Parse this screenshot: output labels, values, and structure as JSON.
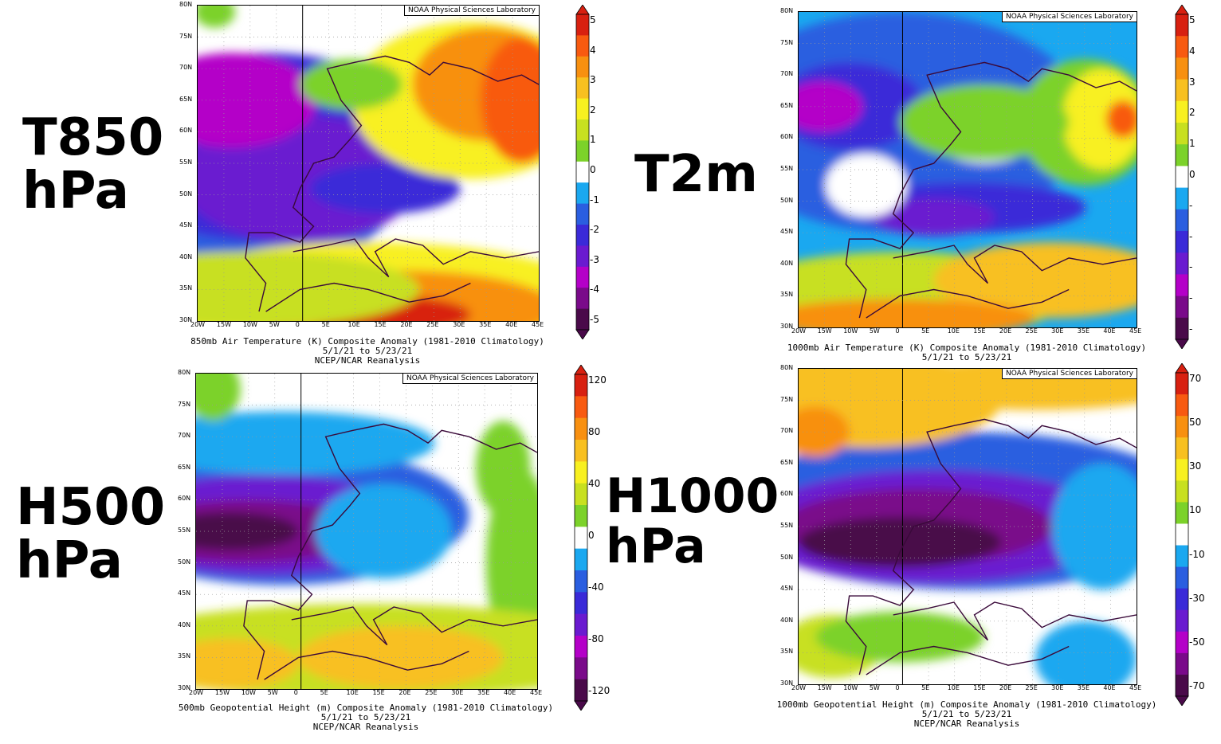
{
  "panels": [
    {
      "id": "t850",
      "big_label_lines": [
        "T850",
        "hPa"
      ],
      "caption_lines": [
        "850mb Air Temperature (K) Composite Anomaly (1981-2010 Climatology)",
        "5/1/21   to 5/23/21",
        "NCEP/NCAR Reanalysis"
      ],
      "noaa": "NOAA Physical Sciences Laboratory",
      "lat_ticks": [
        "80N",
        "75N",
        "70N",
        "65N",
        "60N",
        "55N",
        "50N",
        "45N",
        "40N",
        "35N",
        "30N"
      ],
      "lon_ticks": [
        "20W",
        "15W",
        "10W",
        "5W",
        "0",
        "5E",
        "10E",
        "15E",
        "20E",
        "25E",
        "30E",
        "35E",
        "40E",
        "45E"
      ],
      "colorbar_labels": [
        "5",
        "4",
        "3",
        "2",
        "1",
        "0",
        "-1",
        "-2",
        "-3",
        "-4",
        "-5"
      ]
    },
    {
      "id": "t2m",
      "big_label_lines": [
        "T2m"
      ],
      "caption_lines": [
        "1000mb Air Temperature (K) Composite Anomaly (1981-2010 Climatology)",
        "5/1/21   to 5/23/21"
      ],
      "noaa": "NOAA Physical Sciences Laboratory",
      "lat_ticks": [
        "80N",
        "75N",
        "70N",
        "65N",
        "60N",
        "55N",
        "50N",
        "45N",
        "40N",
        "35N",
        "30N"
      ],
      "lon_ticks": [
        "20W",
        "15W",
        "10W",
        "5W",
        "0",
        "5E",
        "10E",
        "15E",
        "20E",
        "25E",
        "30E",
        "35E",
        "40E",
        "45E"
      ],
      "colorbar_labels": [
        "5",
        "4",
        "3",
        "2",
        "1",
        "0",
        "-",
        "-",
        "-",
        "-",
        "-"
      ]
    },
    {
      "id": "h500",
      "big_label_lines": [
        "H500",
        "hPa"
      ],
      "caption_lines": [
        "500mb Geopotential Height (m) Composite Anomaly (1981-2010 Climatology)",
        "5/1/21   to 5/23/21",
        "NCEP/NCAR Reanalysis"
      ],
      "noaa": "NOAA Physical Sciences Laboratory",
      "lat_ticks": [
        "80N",
        "75N",
        "70N",
        "65N",
        "60N",
        "55N",
        "50N",
        "45N",
        "40N",
        "35N",
        "30N"
      ],
      "lon_ticks": [
        "20W",
        "15W",
        "10W",
        "5W",
        "0",
        "5E",
        "10E",
        "15E",
        "20E",
        "25E",
        "30E",
        "35E",
        "40E",
        "45E"
      ],
      "colorbar_labels": [
        "120",
        "80",
        "40",
        "0",
        "-40",
        "-80",
        "-120"
      ]
    },
    {
      "id": "h1000",
      "big_label_lines": [
        "H1000",
        "hPa"
      ],
      "caption_lines": [
        "1000mb Geopotential Height (m) Composite Anomaly (1981-2010 Climatology)",
        "5/1/21   to 5/23/21",
        "NCEP/NCAR Reanalysis"
      ],
      "noaa": "NOAA Physical Sciences Laboratory",
      "lat_ticks": [
        "80N",
        "75N",
        "70N",
        "65N",
        "60N",
        "55N",
        "50N",
        "45N",
        "40N",
        "35N",
        "30N"
      ],
      "lon_ticks": [
        "20W",
        "15W",
        "10W",
        "5W",
        "0",
        "5E",
        "10E",
        "15E",
        "20E",
        "25E",
        "30E",
        "35E",
        "40E",
        "45E"
      ],
      "colorbar_labels": [
        "70",
        "50",
        "30",
        "10",
        "-10",
        "-30",
        "-50",
        "-70"
      ]
    }
  ],
  "colors": {
    "anomaly_scale": [
      "#4a0a4a",
      "#7a0a8a",
      "#b400c8",
      "#6a1ad0",
      "#3a2ad8",
      "#2a5ee0",
      "#1aa8f0",
      "#ffffff",
      "#7cd22a",
      "#c8e020",
      "#f8f020",
      "#f8c020",
      "#f89010",
      "#f85a10",
      "#d82010"
    ],
    "coast": "#3a0a3a"
  }
}
